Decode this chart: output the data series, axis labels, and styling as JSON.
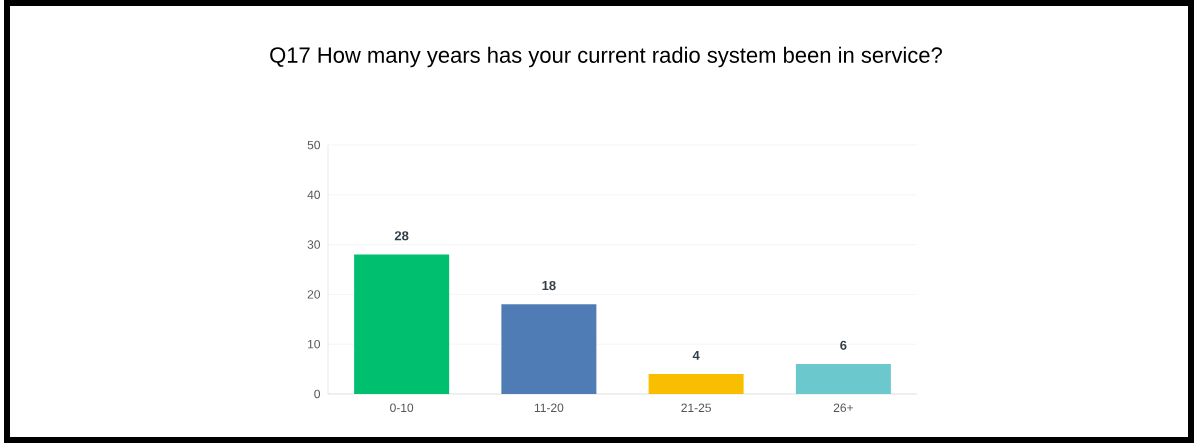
{
  "chart_data": {
    "type": "bar",
    "title": "Q17 How many years has your current radio system been in service?",
    "categories": [
      "0-10",
      "11-20",
      "21-25",
      "26+"
    ],
    "values": [
      28,
      18,
      4,
      6
    ],
    "colors": [
      "#00bf6f",
      "#507cb6",
      "#f9be00",
      "#6bc8cd"
    ],
    "ylim": [
      0,
      50
    ],
    "yticks": [
      0,
      10,
      20,
      30,
      40,
      50
    ],
    "grid": "y",
    "data_labels": true
  }
}
